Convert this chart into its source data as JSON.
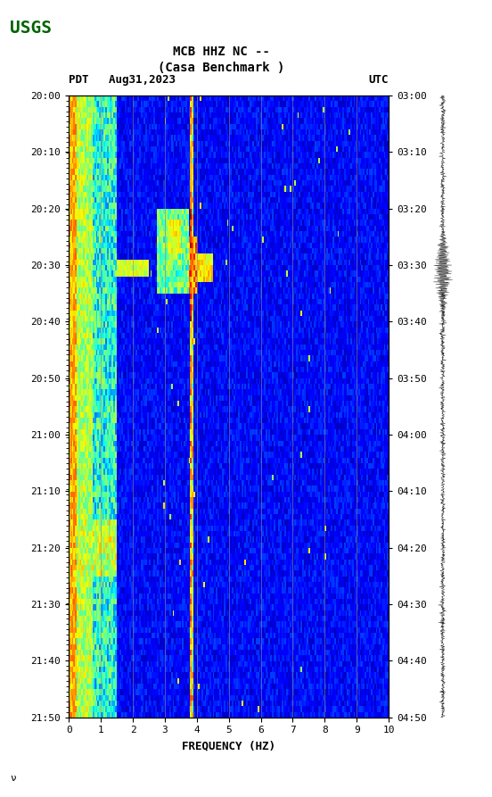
{
  "title_line1": "MCB HHZ NC --",
  "title_line2": "(Casa Benchmark )",
  "left_label": "PDT   Aug31,2023",
  "right_label": "UTC",
  "xlabel": "FREQUENCY (HZ)",
  "freq_min": 0,
  "freq_max": 10,
  "freq_ticks": [
    0,
    1,
    2,
    3,
    4,
    5,
    6,
    7,
    8,
    9,
    10
  ],
  "time_start_pdt": "20:00",
  "time_end_pdt": "21:50",
  "time_start_utc": "03:00",
  "time_end_utc": "04:50",
  "time_labels_left": [
    "20:00",
    "20:10",
    "20:20",
    "20:30",
    "20:40",
    "20:50",
    "21:00",
    "21:10",
    "21:20",
    "21:30",
    "21:40",
    "21:50"
  ],
  "time_labels_right": [
    "03:00",
    "03:10",
    "03:20",
    "03:30",
    "03:40",
    "03:50",
    "04:00",
    "04:10",
    "04:20",
    "04:30",
    "04:40",
    "04:50"
  ],
  "n_time": 110,
  "n_freq": 200,
  "bg_color": "white",
  "colormap": "jet",
  "vertical_lines_freq": [
    1,
    2,
    3,
    4,
    5,
    6,
    7,
    8,
    9
  ],
  "noise_floor": -60,
  "event_time_index": 30,
  "event_freq_peak": 3.8
}
